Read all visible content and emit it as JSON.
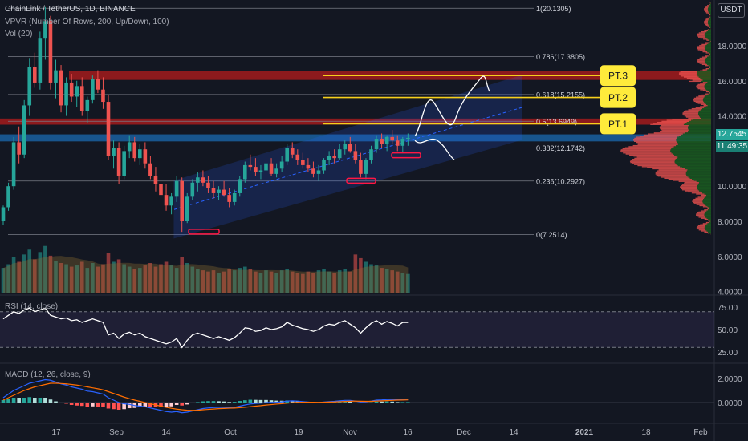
{
  "header": {
    "symbol_line": "ChainLink / TetherUS, 1D, BINANCE",
    "vpvr_line": "VPVR (Number Of Rows, 200, Up/Down, 100)",
    "vol_line": "Vol (20)"
  },
  "price_axis": {
    "unit": "USDT",
    "ticks": [
      "18.0000",
      "16.0000",
      "14.0000",
      "10.0000",
      "8.0000",
      "6.0000",
      "4.0000"
    ],
    "last_price": "12.7545",
    "countdown": "11:49:35"
  },
  "rsi": {
    "label": "RSI (14, close)",
    "ticks": [
      "75.00",
      "50.00",
      "25.00"
    ]
  },
  "macd": {
    "label": "MACD (12, 26, close, 9)",
    "ticks": [
      "2.0000",
      "0.0000"
    ]
  },
  "time_axis": {
    "labels": [
      "17",
      "Sep",
      "14",
      "Oct",
      "19",
      "Nov",
      "16",
      "Dec",
      "14",
      "2021",
      "18",
      "Feb"
    ]
  },
  "fib_levels": [
    {
      "label": "1(20.1305)",
      "value": 20.1305
    },
    {
      "label": "0.786(17.3805)",
      "value": 17.3805
    },
    {
      "label": "0.618(15.2155)",
      "value": 15.2155
    },
    {
      "label": "0.5(13.6949)",
      "value": 13.6949
    },
    {
      "label": "0.382(12.1742)",
      "value": 12.1742
    },
    {
      "label": "0.236(10.2927)",
      "value": 10.2927
    },
    {
      "label": "0(7.2514)",
      "value": 7.2514
    }
  ],
  "targets": [
    {
      "label": "PT.3",
      "value": 16.3
    },
    {
      "label": "PT.2",
      "value": 15.05
    },
    {
      "label": "PT.1",
      "value": 13.55
    }
  ],
  "colors": {
    "background": "#131722",
    "up": "#26a69a",
    "down": "#ef5350",
    "fib": "#787b86",
    "target_line": "#f7d01c",
    "target_box": "#ffeb3b",
    "channel": "#2962ff",
    "resistance_zone": "#b71c1c",
    "support_zone": "#1e88e5",
    "rsi_line": "#ffffff",
    "macd_line": "#2962ff",
    "signal_line": "#ff6d00"
  },
  "chart_data": {
    "type": "candlestick",
    "title": "ChainLink / TetherUS, 1D, BINANCE",
    "y_range": [
      3.8,
      20.6
    ],
    "candles": [
      [
        8.0,
        8.9,
        7.8,
        8.8
      ],
      [
        8.8,
        10.2,
        8.6,
        10.0
      ],
      [
        10.0,
        12.8,
        9.8,
        12.5
      ],
      [
        12.5,
        13.4,
        11.3,
        11.8
      ],
      [
        11.8,
        14.9,
        11.6,
        14.6
      ],
      [
        14.6,
        17.3,
        14.0,
        16.8
      ],
      [
        16.8,
        17.6,
        15.6,
        15.9
      ],
      [
        15.9,
        18.8,
        15.5,
        18.4
      ],
      [
        18.4,
        20.2,
        17.2,
        19.4
      ],
      [
        19.4,
        19.7,
        15.5,
        15.9
      ],
      [
        15.9,
        17.2,
        15.0,
        16.6
      ],
      [
        16.6,
        16.9,
        14.2,
        14.6
      ],
      [
        14.6,
        16.2,
        14.0,
        15.9
      ],
      [
        15.9,
        16.4,
        14.8,
        15.1
      ],
      [
        15.1,
        16.0,
        14.5,
        15.7
      ],
      [
        15.7,
        16.2,
        14.0,
        14.3
      ],
      [
        14.3,
        15.1,
        13.6,
        14.9
      ],
      [
        14.9,
        16.3,
        14.7,
        16.1
      ],
      [
        16.1,
        16.6,
        15.3,
        15.5
      ],
      [
        15.5,
        16.2,
        14.4,
        14.8
      ],
      [
        14.8,
        15.2,
        11.5,
        11.7
      ],
      [
        11.7,
        12.6,
        11.0,
        12.2
      ],
      [
        12.2,
        12.5,
        10.1,
        10.6
      ],
      [
        10.6,
        12.3,
        10.4,
        12.0
      ],
      [
        12.0,
        12.9,
        11.6,
        12.5
      ],
      [
        12.5,
        12.8,
        11.4,
        11.6
      ],
      [
        11.6,
        12.4,
        11.2,
        12.1
      ],
      [
        12.1,
        12.5,
        11.0,
        11.3
      ],
      [
        11.3,
        11.7,
        10.4,
        10.6
      ],
      [
        10.6,
        11.1,
        9.7,
        10.1
      ],
      [
        10.1,
        10.4,
        9.2,
        9.5
      ],
      [
        9.5,
        10.1,
        8.6,
        8.9
      ],
      [
        8.9,
        9.6,
        8.4,
        9.4
      ],
      [
        9.4,
        10.6,
        9.1,
        10.3
      ],
      [
        10.3,
        10.5,
        7.4,
        8.0
      ],
      [
        8.0,
        9.6,
        7.9,
        9.4
      ],
      [
        9.4,
        10.4,
        9.2,
        10.2
      ],
      [
        10.2,
        10.8,
        9.7,
        10.5
      ],
      [
        10.5,
        10.9,
        10.0,
        10.2
      ],
      [
        10.2,
        10.6,
        9.6,
        9.9
      ],
      [
        9.9,
        10.3,
        9.3,
        9.6
      ],
      [
        9.6,
        10.0,
        9.2,
        9.8
      ],
      [
        9.8,
        10.3,
        9.4,
        9.5
      ],
      [
        9.5,
        9.9,
        8.8,
        9.1
      ],
      [
        9.1,
        9.8,
        8.9,
        9.6
      ],
      [
        9.6,
        10.6,
        9.4,
        10.4
      ],
      [
        10.4,
        11.4,
        10.2,
        11.2
      ],
      [
        11.2,
        11.8,
        10.9,
        11.1
      ],
      [
        11.1,
        11.6,
        10.6,
        10.8
      ],
      [
        10.8,
        11.2,
        10.4,
        10.9
      ],
      [
        10.9,
        11.5,
        10.7,
        11.3
      ],
      [
        11.3,
        11.6,
        10.6,
        10.7
      ],
      [
        10.7,
        11.3,
        10.5,
        11.0
      ],
      [
        11.0,
        11.7,
        10.8,
        11.4
      ],
      [
        11.4,
        12.4,
        11.2,
        12.2
      ],
      [
        12.2,
        12.5,
        11.6,
        11.8
      ],
      [
        11.8,
        12.1,
        11.2,
        11.5
      ],
      [
        11.5,
        11.9,
        11.0,
        11.2
      ],
      [
        11.2,
        11.6,
        10.8,
        11.0
      ],
      [
        11.0,
        11.4,
        10.5,
        10.7
      ],
      [
        10.7,
        11.2,
        10.3,
        10.9
      ],
      [
        10.9,
        11.6,
        10.7,
        11.5
      ],
      [
        11.5,
        12.0,
        11.2,
        11.7
      ],
      [
        11.7,
        12.1,
        11.3,
        11.6
      ],
      [
        11.6,
        12.4,
        11.5,
        12.1
      ],
      [
        12.1,
        12.6,
        11.8,
        12.4
      ],
      [
        12.4,
        12.8,
        11.9,
        12.0
      ],
      [
        12.0,
        12.4,
        11.3,
        11.5
      ],
      [
        11.5,
        11.9,
        10.5,
        10.7
      ],
      [
        10.7,
        11.6,
        10.4,
        11.5
      ],
      [
        11.5,
        12.3,
        11.3,
        12.1
      ],
      [
        12.1,
        12.9,
        11.9,
        12.7
      ],
      [
        12.7,
        13.0,
        12.2,
        12.4
      ],
      [
        12.4,
        12.9,
        12.0,
        12.8
      ],
      [
        12.8,
        13.2,
        12.4,
        12.6
      ],
      [
        12.6,
        12.9,
        12.0,
        12.3
      ],
      [
        12.3,
        12.8,
        11.9,
        12.7
      ],
      [
        12.7,
        13.0,
        12.3,
        12.75
      ]
    ],
    "volume": [
      2.1,
      2.4,
      3.0,
      2.6,
      3.2,
      3.6,
      2.8,
      3.4,
      3.9,
      3.1,
      2.7,
      2.5,
      2.4,
      2.2,
      2.3,
      2.6,
      2.1,
      2.5,
      2.2,
      2.4,
      3.3,
      2.6,
      2.8,
      2.4,
      2.2,
      2.0,
      2.1,
      2.3,
      2.5,
      2.2,
      2.4,
      2.6,
      2.3,
      2.1,
      3.0,
      2.5,
      2.2,
      2.0,
      1.9,
      1.8,
      1.9,
      1.7,
      1.8,
      2.0,
      1.9,
      2.1,
      2.2,
      2.0,
      1.8,
      1.7,
      1.9,
      1.8,
      1.7,
      1.9,
      2.0,
      1.8,
      1.7,
      1.6,
      1.8,
      1.7,
      1.9,
      2.0,
      1.8,
      1.7,
      1.9,
      2.0,
      1.8,
      3.2,
      2.9,
      2.6,
      2.4,
      2.3,
      2.1,
      2.0,
      1.9,
      1.8,
      1.7,
      1.6
    ],
    "rsi": [
      62,
      66,
      70,
      68,
      72,
      74,
      70,
      72,
      74,
      66,
      64,
      62,
      63,
      60,
      61,
      58,
      60,
      62,
      60,
      58,
      44,
      46,
      40,
      45,
      47,
      44,
      46,
      42,
      40,
      38,
      36,
      34,
      36,
      40,
      30,
      38,
      44,
      46,
      44,
      42,
      40,
      42,
      40,
      38,
      41,
      46,
      52,
      51,
      48,
      49,
      52,
      50,
      51,
      53,
      58,
      55,
      53,
      51,
      50,
      48,
      50,
      54,
      56,
      55,
      58,
      60,
      56,
      52,
      46,
      52,
      57,
      60,
      56,
      59,
      57,
      54,
      58,
      58
    ],
    "macd": [
      0.4,
      0.7,
      1.0,
      1.2,
      1.4,
      1.6,
      1.7,
      1.8,
      1.9,
      1.85,
      1.7,
      1.55,
      1.45,
      1.3,
      1.2,
      1.1,
      0.95,
      0.9,
      0.8,
      0.7,
      0.4,
      0.2,
      0.0,
      -0.1,
      -0.15,
      -0.25,
      -0.3,
      -0.35,
      -0.45,
      -0.55,
      -0.65,
      -0.75,
      -0.8,
      -0.75,
      -0.85,
      -0.8,
      -0.7,
      -0.6,
      -0.5,
      -0.45,
      -0.42,
      -0.4,
      -0.4,
      -0.42,
      -0.4,
      -0.3,
      -0.2,
      -0.12,
      -0.08,
      -0.05,
      0.0,
      0.02,
      0.03,
      0.06,
      0.12,
      0.14,
      0.12,
      0.08,
      0.04,
      0.0,
      0.0,
      0.04,
      0.08,
      0.1,
      0.14,
      0.18,
      0.18,
      0.12,
      0.05,
      0.06,
      0.12,
      0.2,
      0.22,
      0.25,
      0.26,
      0.24,
      0.25,
      0.26
    ],
    "signal": [
      0.2,
      0.4,
      0.6,
      0.8,
      1.0,
      1.15,
      1.3,
      1.4,
      1.5,
      1.6,
      1.6,
      1.58,
      1.55,
      1.5,
      1.45,
      1.38,
      1.3,
      1.22,
      1.14,
      1.05,
      0.9,
      0.75,
      0.6,
      0.45,
      0.32,
      0.2,
      0.1,
      0.0,
      -0.1,
      -0.2,
      -0.3,
      -0.4,
      -0.48,
      -0.55,
      -0.6,
      -0.64,
      -0.65,
      -0.64,
      -0.6,
      -0.57,
      -0.54,
      -0.51,
      -0.49,
      -0.47,
      -0.46,
      -0.43,
      -0.39,
      -0.35,
      -0.3,
      -0.26,
      -0.21,
      -0.17,
      -0.13,
      -0.09,
      -0.05,
      -0.01,
      0.02,
      0.03,
      0.03,
      0.03,
      0.02,
      0.03,
      0.04,
      0.05,
      0.07,
      0.09,
      0.11,
      0.12,
      0.11,
      0.1,
      0.1,
      0.12,
      0.14,
      0.16,
      0.18,
      0.2,
      0.21,
      0.22
    ]
  }
}
